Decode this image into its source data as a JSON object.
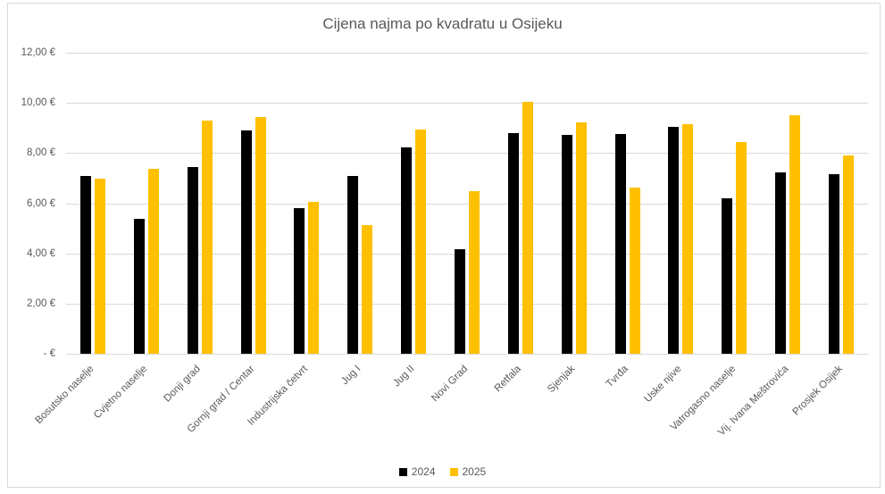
{
  "chart_data": {
    "type": "bar",
    "title": "Cijena najma po kvadratu u Osijeku",
    "xlabel": "",
    "ylabel": "",
    "categories": [
      "Bosutsko naselje",
      "Cvjetno naselje",
      "Donji grad",
      "Gornji grad / Centar",
      "Industrijska četvrt",
      "Jug I",
      "Jug II",
      "Novi Grad",
      "Retfala",
      "Sjenjak",
      "Tvrđa",
      "Uske njive",
      "Vatrogasno naselje",
      "Vij. Ivana Meštrovića",
      "Prosjek Osijek"
    ],
    "series": [
      {
        "name": "2024",
        "color": "#000000",
        "values": [
          7.08,
          5.36,
          7.43,
          8.9,
          5.82,
          7.08,
          8.21,
          4.15,
          8.81,
          8.73,
          8.75,
          9.05,
          6.19,
          7.24,
          7.14
        ]
      },
      {
        "name": "2025",
        "color": "#FFC000",
        "values": [
          6.97,
          7.36,
          9.3,
          9.44,
          6.04,
          5.14,
          8.93,
          6.47,
          10.03,
          9.24,
          6.64,
          9.14,
          8.44,
          9.5,
          7.9
        ]
      }
    ],
    "ylim": [
      0,
      12
    ],
    "ytick_step": 2,
    "ytick_labels": [
      "- €",
      "2,00 €",
      "4,00 €",
      "6,00 €",
      "8,00 €",
      "10,00 €",
      "12,00 €"
    ],
    "grid": "horizontal",
    "legend_position": "bottom",
    "colors": {
      "text": "#595959",
      "gridline": "#D9D9D9",
      "frame": "#D9D9D9",
      "background": "#FFFFFF"
    }
  }
}
